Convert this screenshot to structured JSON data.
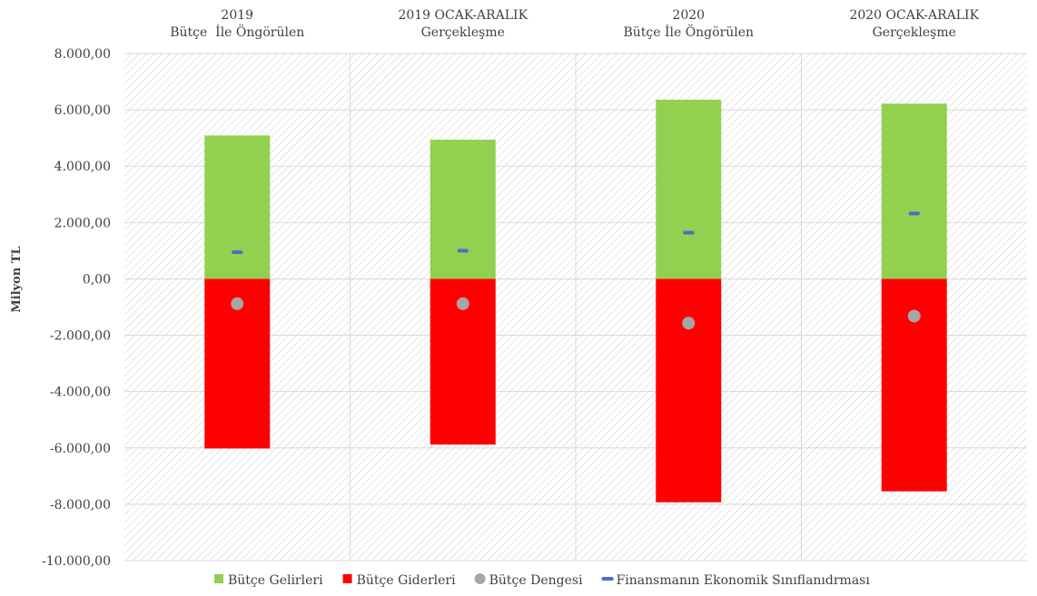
{
  "chart_data": {
    "type": "bar",
    "stacked": true,
    "categories": [
      [
        "2019",
        "Bütçe  İle Öngörülen"
      ],
      [
        "2019 OCAK-ARALIK",
        "Gerçekleşme"
      ],
      [
        "2020",
        "Bütçe İle Öngörülen"
      ],
      [
        "2020 OCAK-ARALIK",
        "Gerçekleşme"
      ]
    ],
    "series": [
      {
        "name": "Bütçe Gelirleri",
        "kind": "bar",
        "color": "#92D050",
        "values": [
          5090,
          4940,
          6360,
          6220
        ]
      },
      {
        "name": "Bütçe Giderleri",
        "kind": "bar",
        "color": "#FF0000",
        "values": [
          -6020,
          -5880,
          -7930,
          -7540
        ]
      },
      {
        "name": "Bütçe Dengesi",
        "kind": "marker-circle",
        "color": "#A6A6A6",
        "values": [
          -880,
          -880,
          -1570,
          -1320
        ]
      },
      {
        "name": "Finansmanın Ekonomik Sınıflanıdrması",
        "kind": "marker-dash",
        "color": "#4472C4",
        "values": [
          950,
          1000,
          1640,
          2320
        ]
      }
    ],
    "ylabel": "Milyon TL",
    "ylim": [
      -10000,
      8000
    ],
    "ytick_step": 2000,
    "ytick_labels": [
      "8.000,00",
      "6.000,00",
      "4.000,00",
      "2.000,00",
      "0,00",
      "-2.000,00",
      "-4.000,00",
      "-6.000,00",
      "-8.000,00",
      "-10.000,00"
    ],
    "grid": true,
    "legend_position": "bottom",
    "categories_position": "top"
  }
}
